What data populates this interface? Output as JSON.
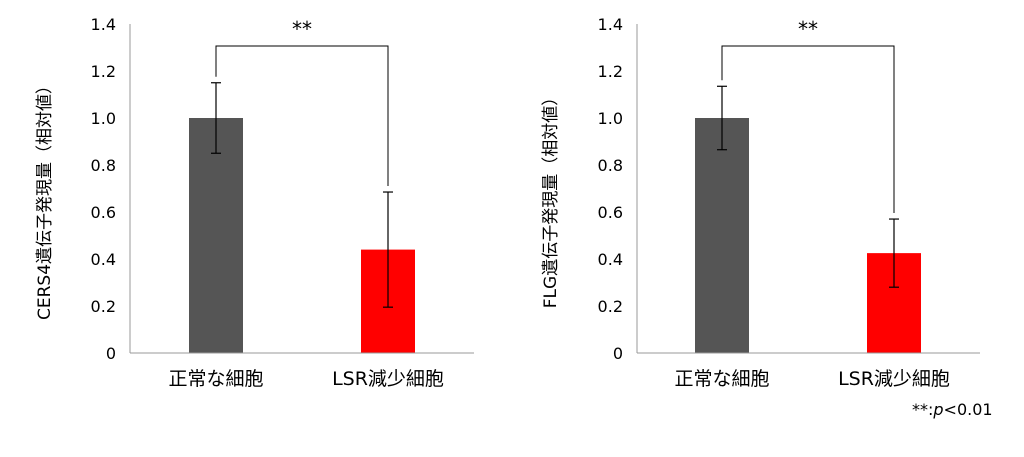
{
  "chart_data": [
    {
      "type": "bar",
      "categories": [
        "正常な細胞",
        "LSR減少細胞"
      ],
      "values": [
        1.0,
        0.44
      ],
      "error": [
        0.15,
        0.245
      ],
      "colors": [
        "#555555",
        "#ff0000"
      ],
      "ylabel": "CERS4遺伝子発現量（相対値）",
      "ylim": [
        0,
        1.4
      ],
      "yticks": [
        "0",
        "0.2",
        "0.4",
        "0.6",
        "0.8",
        "1.0",
        "1.2",
        "1.4"
      ],
      "significance": "**",
      "grid": false
    },
    {
      "type": "bar",
      "categories": [
        "正常な細胞",
        "LSR減少細胞"
      ],
      "values": [
        1.0,
        0.425
      ],
      "error": [
        0.135,
        0.145
      ],
      "colors": [
        "#555555",
        "#ff0000"
      ],
      "ylabel": "FLG遺伝子発現量（相対値）",
      "ylim": [
        0,
        1.4
      ],
      "yticks": [
        "0",
        "0.2",
        "0.4",
        "0.6",
        "0.8",
        "1.0",
        "1.2",
        "1.4"
      ],
      "significance": "**",
      "grid": false
    }
  ],
  "footnote": {
    "stars": "**:",
    "p": "p",
    "rest": "<0.01"
  }
}
